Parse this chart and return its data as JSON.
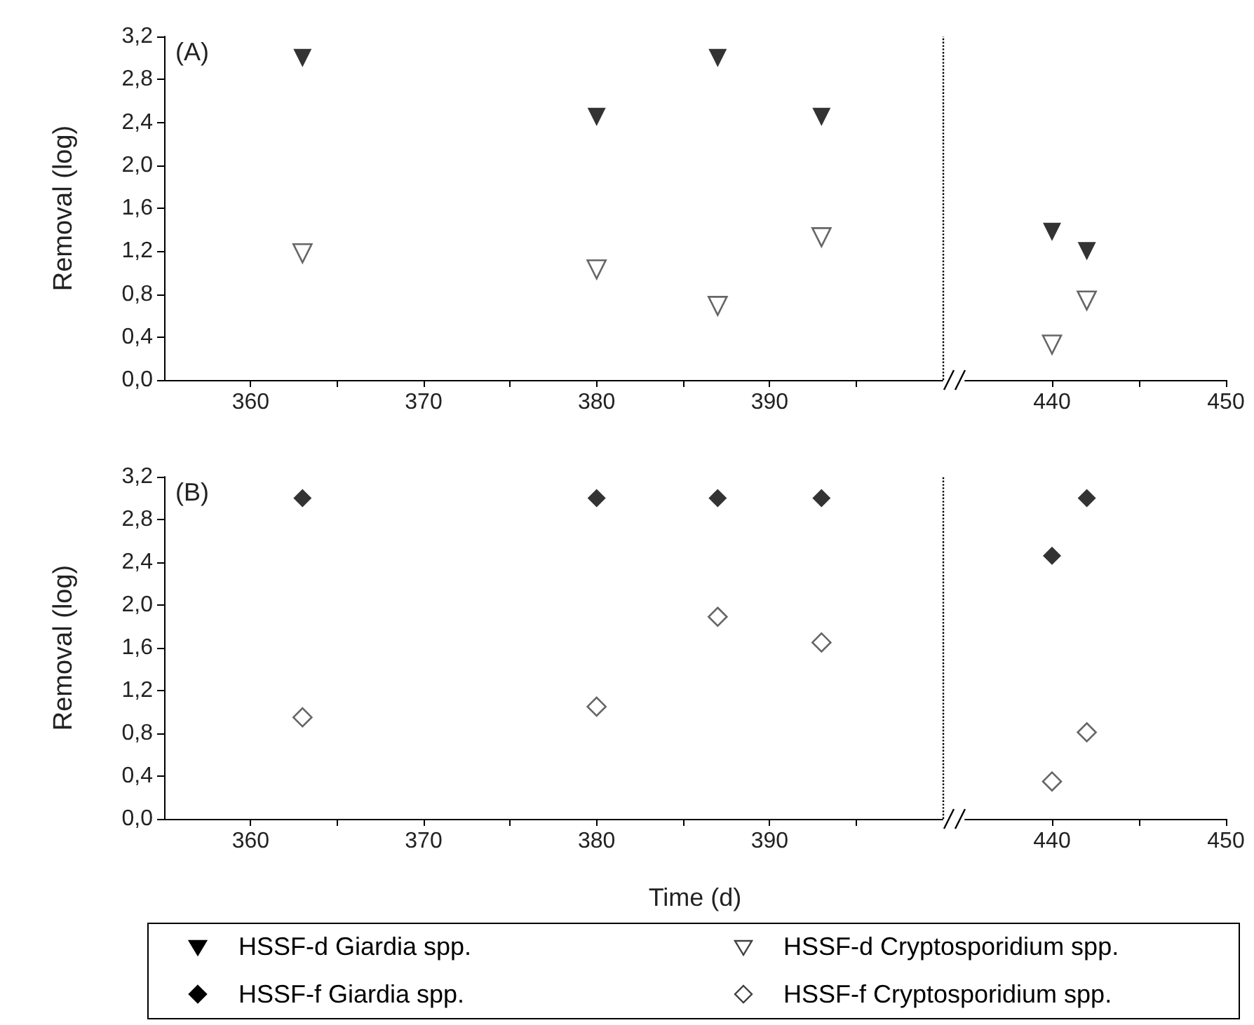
{
  "chart_data": [
    {
      "type": "scatter",
      "ylabel": "Removal (log)",
      "annotations": [
        "(A)"
      ],
      "legend": "bottom",
      "grid": false,
      "xlim": [
        355,
        400
      ],
      "xticks": [
        360,
        {
          "value": 365,
          "label": null
        },
        370,
        {
          "value": 375,
          "label": null
        },
        380,
        {
          "value": 385,
          "label": null
        },
        390,
        {
          "value": 395,
          "label": null
        }
      ],
      "ylim": [
        0,
        3.2
      ],
      "yticks": [
        {
          "value": 0,
          "label": "0,0"
        },
        {
          "value": 0.4,
          "label": "0,4"
        },
        {
          "value": 0.8,
          "label": "0,8"
        },
        {
          "value": 1.2,
          "label": "1,2"
        },
        {
          "value": 1.6,
          "label": "1,6"
        },
        {
          "value": 2.0,
          "label": "2,0"
        },
        {
          "value": 2.4,
          "label": "2,4"
        },
        {
          "value": 2.8,
          "label": "2,8"
        },
        {
          "value": 3.2,
          "label": "3,2"
        }
      ],
      "ref_lines": [
        {
          "axis": "x",
          "value": 400,
          "label": null,
          "color": "#000000",
          "line_style": "dotted"
        }
      ],
      "series": [
        {
          "name": "HSSF-d Giardia spp.",
          "color": "#000000",
          "marker": "triangle",
          "x": [
            363,
            380,
            387,
            393
          ],
          "values": [
            3.0,
            2.45,
            3.0,
            2.45
          ]
        },
        {
          "name": "HSSF-d Cryptosporidium spp.",
          "color": "#404040",
          "marker": "triangle",
          "x": [
            363,
            380,
            387,
            393
          ],
          "values": [
            1.18,
            1.03,
            0.69,
            1.33
          ]
        }
      ]
    },
    {
      "type": "scatter",
      "tick_labels": "x",
      "grid": false,
      "xlim": [
        435,
        450
      ],
      "xticks": [
        440,
        {
          "value": 445,
          "label": null
        },
        450
      ],
      "ylim": [
        0,
        3.2
      ],
      "series": [
        {
          "color": "#000000",
          "marker": "triangle",
          "x": [
            440,
            442
          ],
          "values": [
            1.38,
            1.2
          ]
        },
        {
          "color": "#404040",
          "marker": "triangle",
          "x": [
            440,
            442
          ],
          "values": [
            0.33,
            0.74
          ]
        }
      ]
    },
    {
      "type": "scatter",
      "ylabel": "Removal (log)",
      "xlabel": "Time (d)",
      "annotations": [
        "(B)"
      ],
      "legend": "bottom",
      "grid": false,
      "xlim": [
        355,
        400
      ],
      "xticks": [
        360,
        {
          "value": 365,
          "label": null
        },
        370,
        {
          "value": 375,
          "label": null
        },
        380,
        {
          "value": 385,
          "label": null
        },
        390,
        {
          "value": 395,
          "label": null
        }
      ],
      "ylim": [
        0,
        3.2
      ],
      "yticks": [
        {
          "value": 0,
          "label": "0,0"
        },
        {
          "value": 0.4,
          "label": "0,4"
        },
        {
          "value": 0.8,
          "label": "0,8"
        },
        {
          "value": 1.2,
          "label": "1,2"
        },
        {
          "value": 1.6,
          "label": "1,6"
        },
        {
          "value": 2.0,
          "label": "2,0"
        },
        {
          "value": 2.4,
          "label": "2,4"
        },
        {
          "value": 2.8,
          "label": "2,8"
        },
        {
          "value": 3.2,
          "label": "3,2"
        }
      ],
      "ref_lines": [
        {
          "axis": "x",
          "value": 400,
          "label": null,
          "color": "#000000",
          "line_style": "dotted"
        }
      ],
      "series": [
        {
          "name": "HSSF-f Giardia spp.",
          "color": "#000000",
          "marker": "diamond",
          "x": [
            363,
            380,
            387,
            393
          ],
          "values": [
            3.0,
            3.0,
            3.0,
            3.0
          ]
        },
        {
          "name": "HSSF-f Cryptosporidium spp.",
          "color": "#404040",
          "marker": "diamond",
          "x": [
            363,
            380,
            387,
            393
          ],
          "values": [
            0.95,
            1.05,
            1.89,
            1.65
          ]
        }
      ]
    },
    {
      "type": "scatter",
      "tick_labels": "x",
      "grid": false,
      "xlim": [
        435,
        450
      ],
      "xticks": [
        440,
        {
          "value": 445,
          "label": null
        },
        450
      ],
      "ylim": [
        0,
        3.2
      ],
      "series": [
        {
          "color": "#000000",
          "marker": "diamond",
          "x": [
            440,
            442
          ],
          "values": [
            2.46,
            3.0
          ]
        },
        {
          "color": "#404040",
          "marker": "diamond",
          "x": [
            440,
            442
          ],
          "values": [
            0.35,
            0.81
          ]
        }
      ]
    }
  ]
}
